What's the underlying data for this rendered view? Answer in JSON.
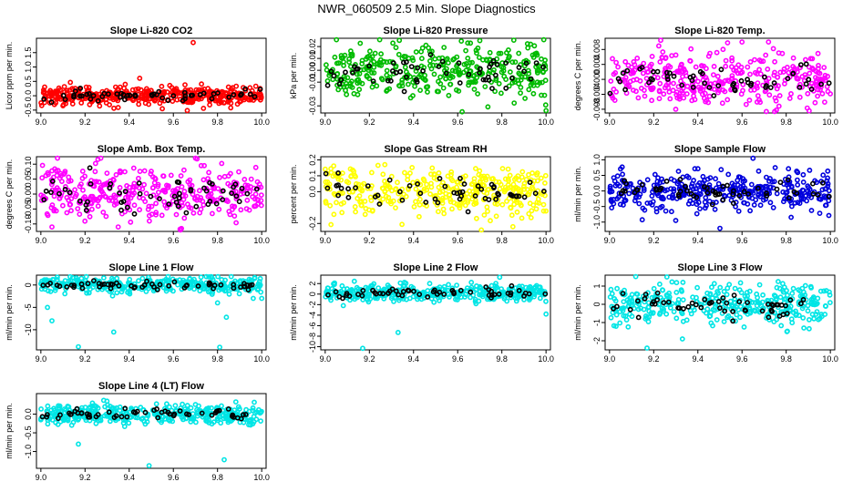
{
  "page": {
    "title": "NWR_060509  2.5 Min. Slope Diagnostics"
  },
  "chart_data": [
    {
      "type": "scatter",
      "title": "Slope Li-820 CO2",
      "xlabel": "",
      "ylabel": "Licor ppm per min.",
      "xlim": [
        8.98,
        10.02
      ],
      "ylim": [
        -0.6,
        2.0
      ],
      "x_ticks": [
        "9.0",
        "9.2",
        "9.4",
        "9.6",
        "9.8",
        "10.0"
      ],
      "y_ticks": [
        "-0.5",
        "0.0",
        "0.5",
        "1.0",
        "1.5"
      ],
      "grid": false,
      "primary_color": "#ff0000",
      "secondary_color": "#000000",
      "spread": 0.16,
      "center": 0.0,
      "outliers": [
        [
          9.69,
          1.85
        ],
        [
          9.55,
          -0.45
        ],
        [
          9.1,
          -0.35
        ],
        [
          9.86,
          -0.42
        ]
      ],
      "primary_count": 420,
      "secondary_count": 55
    },
    {
      "type": "scatter",
      "title": "Slope Li-820 Pressure",
      "xlabel": "",
      "ylabel": "kPa per min.",
      "xlim": [
        8.98,
        10.02
      ],
      "ylim": [
        -0.036,
        0.027
      ],
      "x_ticks": [
        "9.0",
        "9.2",
        "9.4",
        "9.6",
        "9.8",
        "10.0"
      ],
      "y_ticks": [
        "-0.03",
        "-0.01",
        "0.00",
        "0.01",
        "0.02"
      ],
      "grid": false,
      "primary_color": "#00bb00",
      "secondary_color": "#000000",
      "spread": 0.011,
      "center": 0.0,
      "outliers": [
        [
          9.62,
          -0.035
        ],
        [
          10.0,
          -0.034
        ],
        [
          9.7,
          0.025
        ]
      ],
      "primary_count": 360,
      "secondary_count": 55
    },
    {
      "type": "scatter",
      "title": "Slope Li-820 Temp.",
      "xlabel": "",
      "ylabel": "degrees C per min.",
      "xlim": [
        8.98,
        10.02
      ],
      "ylim": [
        -0.009,
        0.011
      ],
      "x_ticks": [
        "9.0",
        "9.2",
        "9.4",
        "9.6",
        "9.8",
        "10.0"
      ],
      "y_ticks": [
        "-0.008",
        "-0.004",
        "0.000",
        "0.004",
        "0.008"
      ],
      "grid": false,
      "primary_color": "#ff00ff",
      "secondary_color": "#000000",
      "spread": 0.0035,
      "center": 0.0,
      "outliers": [
        [
          9.3,
          -0.008
        ],
        [
          9.6,
          0.01
        ],
        [
          9.72,
          0.01
        ]
      ],
      "primary_count": 360,
      "secondary_count": 55
    },
    {
      "type": "scatter",
      "title": "Slope Amb. Box Temp.",
      "xlabel": "",
      "ylabel": "degrees C per min.",
      "xlim": [
        8.98,
        10.02
      ],
      "ylim": [
        -0.125,
        0.125
      ],
      "x_ticks": [
        "9.0",
        "9.2",
        "9.4",
        "9.6",
        "9.8",
        "10.0"
      ],
      "y_ticks": [
        "-0.10",
        "-0.05",
        "0.00",
        "0.05",
        "0.10"
      ],
      "grid": false,
      "primary_color": "#ff00ff",
      "secondary_color": "#000000",
      "spread": 0.045,
      "center": 0.0,
      "outliers": [
        [
          9.7,
          0.12
        ],
        [
          9.05,
          -0.11
        ],
        [
          9.35,
          -0.11
        ]
      ],
      "primary_count": 360,
      "secondary_count": 55
    },
    {
      "type": "scatter",
      "title": "Slope Gas Stream RH",
      "xlabel": "",
      "ylabel": "percent per min.",
      "xlim": [
        8.98,
        10.02
      ],
      "ylim": [
        -0.25,
        0.22
      ],
      "x_ticks": [
        "9.0",
        "9.2",
        "9.4",
        "9.6",
        "9.8",
        "10.0"
      ],
      "y_ticks": [
        "-0.2",
        "0.0",
        "0.1",
        "0.2"
      ],
      "grid": false,
      "primary_color": "#ffff00",
      "secondary_color": "#000000",
      "spread": 0.08,
      "center": 0.0,
      "outliers": [
        [
          9.27,
          0.17
        ],
        [
          9.85,
          -0.22
        ]
      ],
      "primary_count": 360,
      "secondary_count": 55
    },
    {
      "type": "scatter",
      "title": "Slope Sample Flow",
      "xlabel": "",
      "ylabel": "ml/min per min.",
      "xlim": [
        8.98,
        10.02
      ],
      "ylim": [
        -1.3,
        1.1
      ],
      "x_ticks": [
        "9.0",
        "9.2",
        "9.4",
        "9.6",
        "9.8",
        "10.0"
      ],
      "y_ticks": [
        "-1.0",
        "-0.5",
        "0.0",
        "0.5",
        "1.0"
      ],
      "grid": false,
      "primary_color": "#0000dd",
      "secondary_color": "#000000",
      "spread": 0.32,
      "center": 0.0,
      "outliers": [
        [
          9.5,
          -1.2
        ],
        [
          9.65,
          1.05
        ],
        [
          9.3,
          -0.95
        ]
      ],
      "primary_count": 360,
      "secondary_count": 55
    },
    {
      "type": "scatter",
      "title": "Slope Line 1 Flow",
      "xlabel": "",
      "ylabel": "ml/min per min.",
      "xlim": [
        8.98,
        10.02
      ],
      "ylim": [
        -14.5,
        2.2
      ],
      "x_ticks": [
        "9.0",
        "9.2",
        "9.4",
        "9.6",
        "9.8",
        "10.0"
      ],
      "y_ticks": [
        "-10",
        "-5",
        "0"
      ],
      "grid": false,
      "primary_color": "#00e5e5",
      "secondary_color": "#000000",
      "spread": 0.9,
      "center": 0.0,
      "outliers": [
        [
          9.17,
          -13.8
        ],
        [
          9.33,
          -10.5
        ],
        [
          9.81,
          -13.9
        ],
        [
          9.03,
          -5.0
        ],
        [
          9.05,
          -8.0
        ],
        [
          9.84,
          -7.2
        ],
        [
          9.8,
          -4.0
        ],
        [
          10.0,
          -3.0
        ]
      ],
      "primary_count": 360,
      "secondary_count": 55
    },
    {
      "type": "scatter",
      "title": "Slope Line 2 Flow",
      "xlabel": "",
      "ylabel": "ml/min per min.",
      "xlim": [
        8.98,
        10.02
      ],
      "ylim": [
        -10.6,
        3.6
      ],
      "x_ticks": [
        "9.0",
        "9.2",
        "9.4",
        "9.6",
        "9.8",
        "10.0"
      ],
      "y_ticks": [
        "-10",
        "-8",
        "-6",
        "-4",
        "-2",
        "0",
        "2"
      ],
      "grid": false,
      "primary_color": "#00e5e5",
      "secondary_color": "#000000",
      "spread": 0.8,
      "center": 0.2,
      "outliers": [
        [
          9.17,
          -10.3
        ],
        [
          9.33,
          -7.3
        ],
        [
          9.79,
          3.2
        ],
        [
          10.0,
          -3.8
        ]
      ],
      "primary_count": 360,
      "secondary_count": 55
    },
    {
      "type": "scatter",
      "title": "Slope Line 3 Flow",
      "xlabel": "",
      "ylabel": "ml/min per min.",
      "xlim": [
        8.98,
        10.02
      ],
      "ylim": [
        -2.5,
        1.6
      ],
      "x_ticks": [
        "9.0",
        "9.2",
        "9.4",
        "9.6",
        "9.8",
        "10.0"
      ],
      "y_ticks": [
        "-2",
        "-1",
        "0",
        "1"
      ],
      "grid": false,
      "primary_color": "#00e5e5",
      "secondary_color": "#000000",
      "spread": 0.55,
      "center": 0.0,
      "outliers": [
        [
          9.17,
          -2.4
        ],
        [
          9.33,
          -1.9
        ],
        [
          9.26,
          1.5
        ],
        [
          9.88,
          -1.3
        ]
      ],
      "primary_count": 360,
      "secondary_count": 55
    },
    {
      "type": "scatter",
      "title": "Slope Line 4 (LT) Flow",
      "xlabel": "",
      "ylabel": "ml/min per min.",
      "xlim": [
        8.98,
        10.02
      ],
      "ylim": [
        -1.45,
        0.55
      ],
      "x_ticks": [
        "9.0",
        "9.2",
        "9.4",
        "9.6",
        "9.8",
        "10.0"
      ],
      "y_ticks": [
        "-1.0",
        "-0.5",
        "0.0"
      ],
      "grid": false,
      "primary_color": "#00e5e5",
      "secondary_color": "#000000",
      "spread": 0.13,
      "center": 0.0,
      "outliers": [
        [
          9.17,
          -0.8
        ],
        [
          9.49,
          -1.38
        ],
        [
          9.83,
          -1.22
        ],
        [
          9.0,
          -0.15
        ],
        [
          9.25,
          -0.25
        ]
      ],
      "primary_count": 360,
      "secondary_count": 55
    }
  ]
}
